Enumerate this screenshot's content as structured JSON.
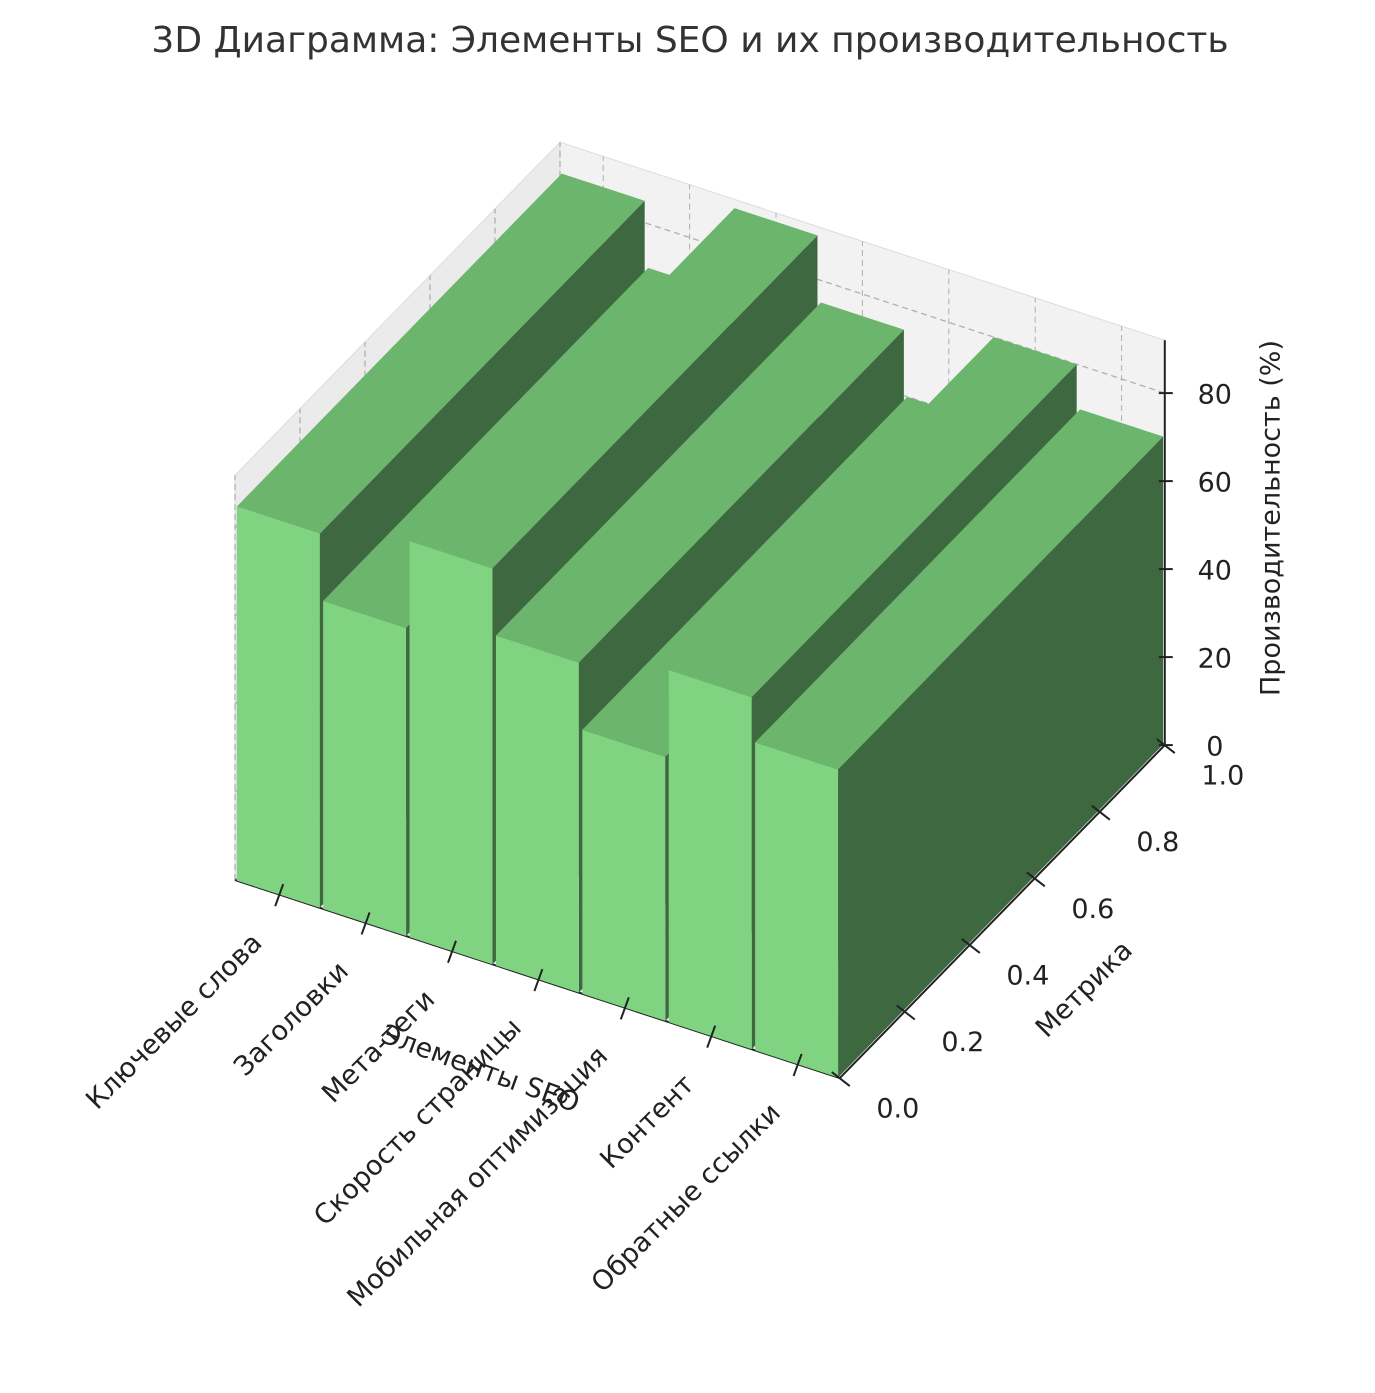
{
  "chart_data": {
    "type": "bar3d",
    "title": "3D Диаграмма: Элементы SEO и их производительность",
    "x_label": "Элементы SEO",
    "y_label": "Метрика",
    "z_label": "Производительность (%)",
    "categories": [
      "Ключевые слова",
      "Заголовки",
      "Мета-теги",
      "Скорость страницы",
      "Мобильная оптимизация",
      "Контент",
      "Обратные ссылки"
    ],
    "values": [
      85,
      70,
      90,
      75,
      60,
      80,
      70
    ],
    "colors": {
      "front": "#7fd381",
      "top": "#6bb56d",
      "side": "#3e6840"
    },
    "zlim": [
      0,
      92
    ],
    "zticks": [
      0,
      20,
      40,
      60,
      80
    ],
    "ylim": [
      0,
      1
    ],
    "yticks": [
      {
        "value": 0,
        "label": "0.0"
      },
      {
        "value": 0.2,
        "label": "0.2"
      },
      {
        "value": 0.4,
        "label": "0.4"
      },
      {
        "value": 0.6,
        "label": "0.6"
      },
      {
        "value": 0.8,
        "label": "0.8"
      },
      {
        "value": 1,
        "label": "1.0"
      }
    ],
    "grid": true
  }
}
